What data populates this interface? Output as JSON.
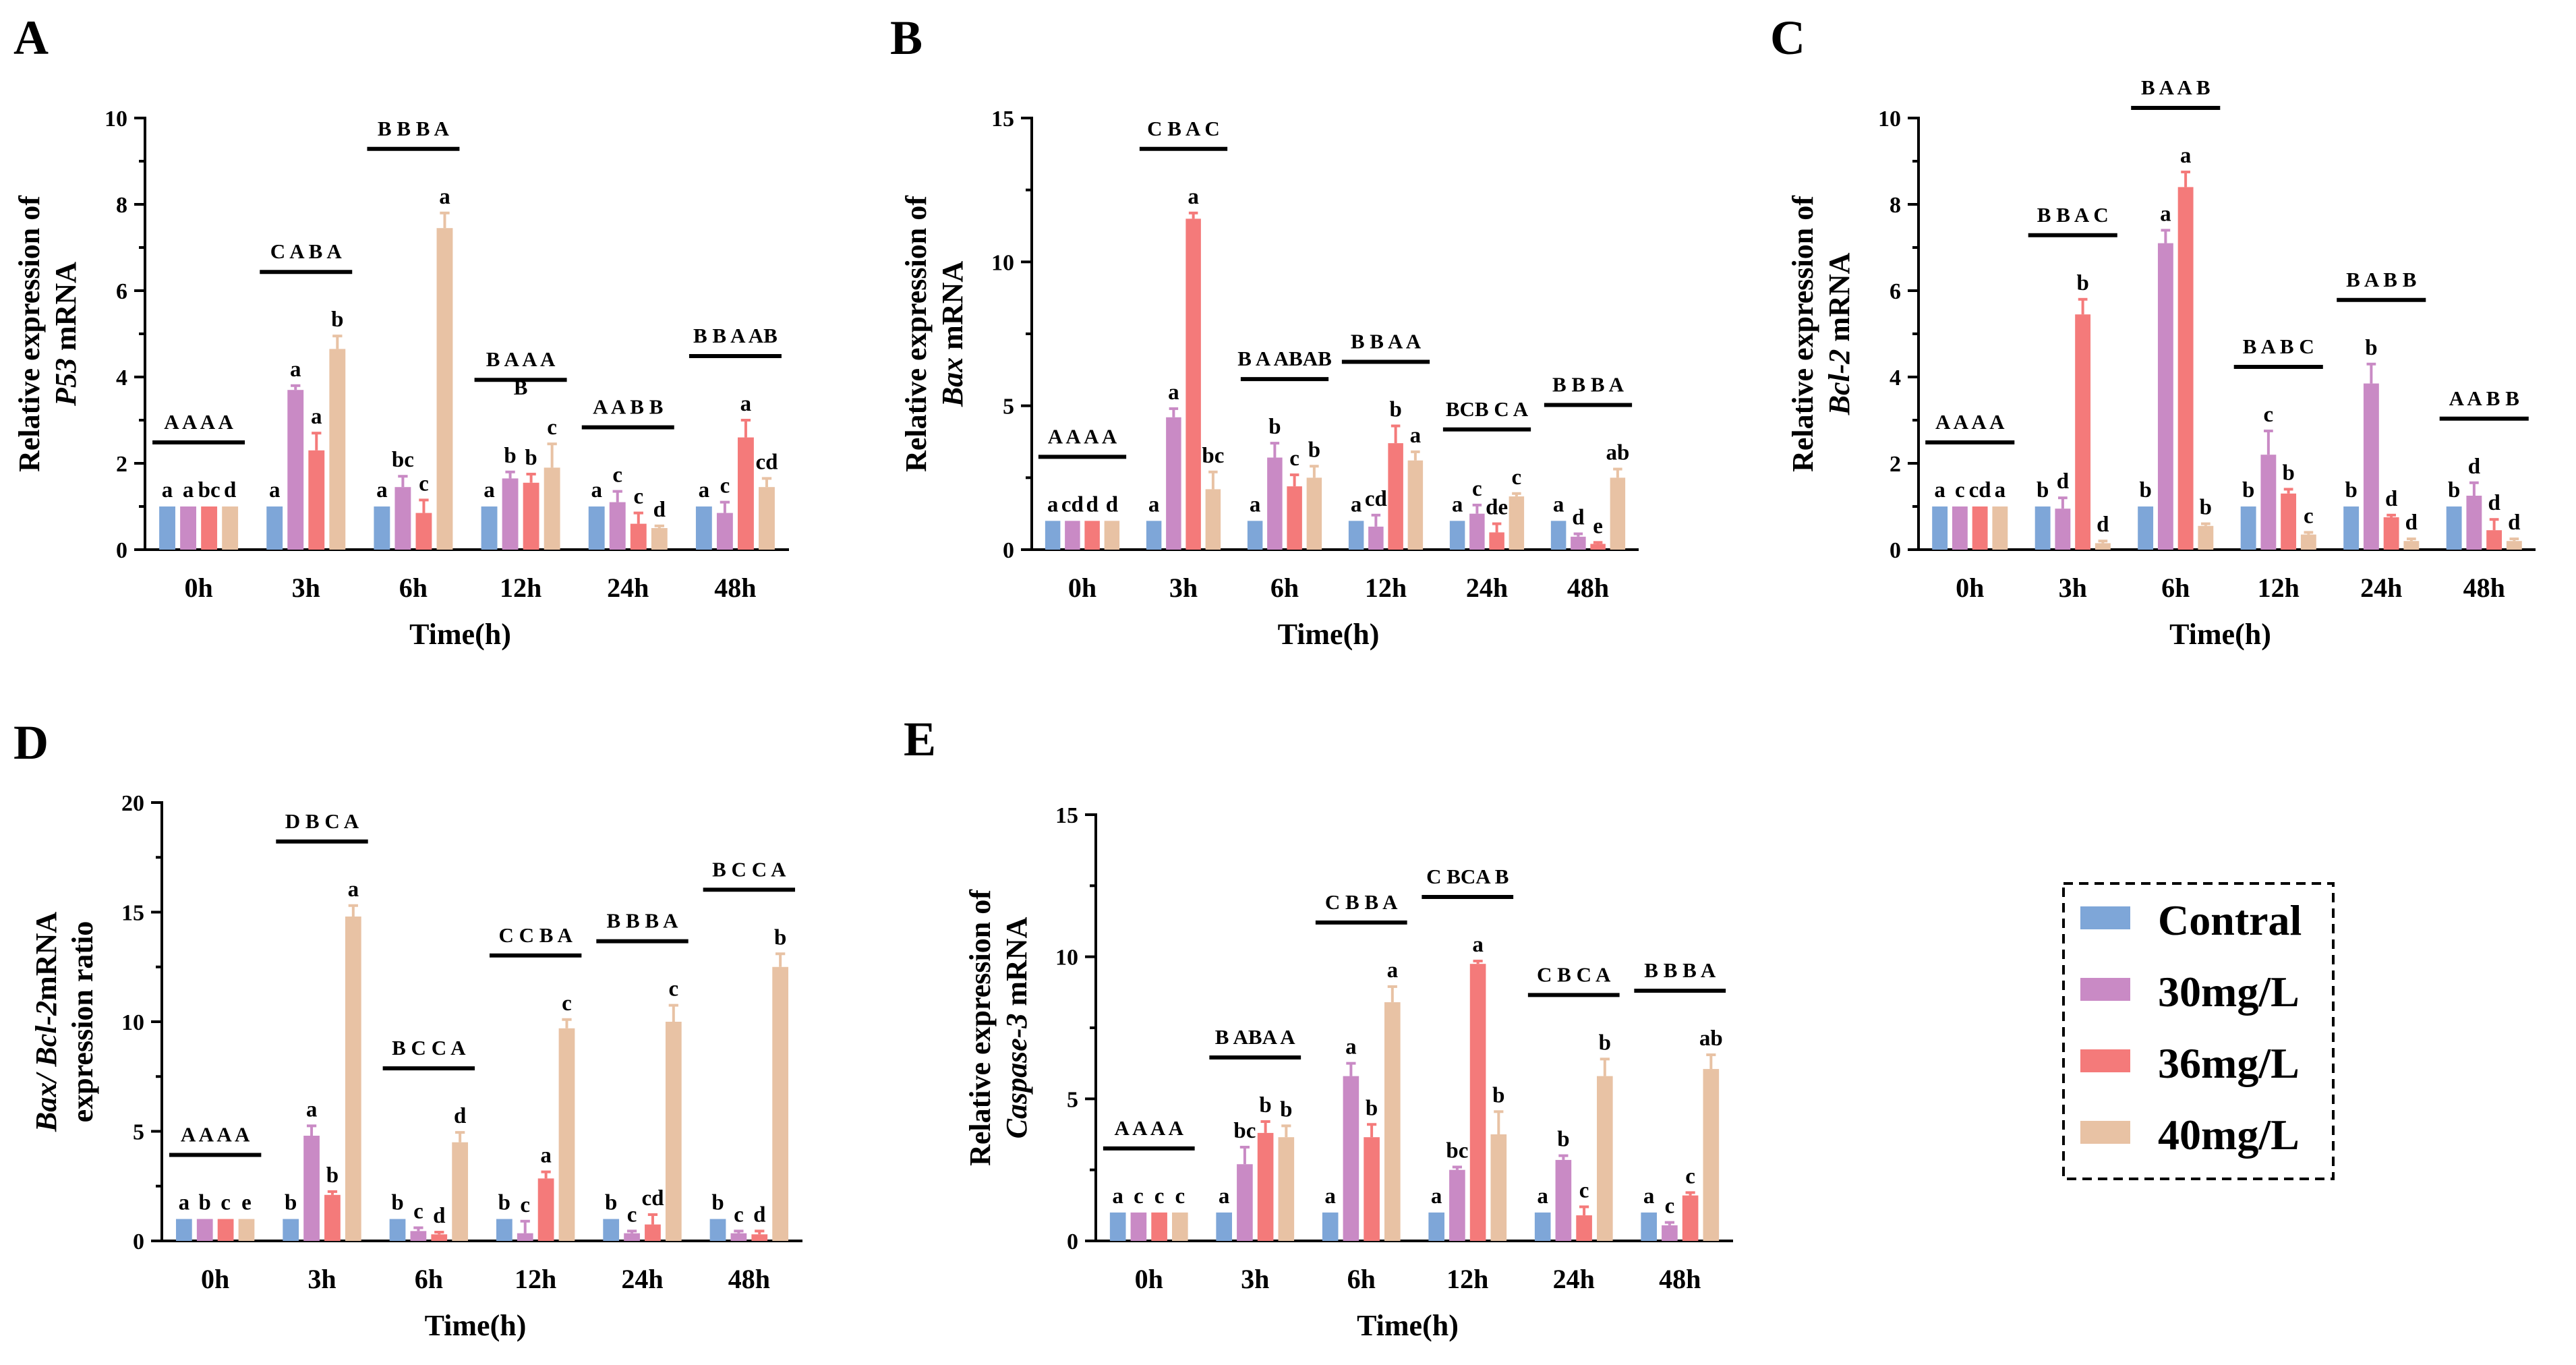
{
  "legend": {
    "items": [
      {
        "label": "Contral",
        "color": "#7ea6d8"
      },
      {
        "label": "30mg/L",
        "color": "#c98ac5"
      },
      {
        "label": "36mg/L",
        "color": "#f47a7a"
      },
      {
        "label": "40mg/L",
        "color": "#e8c2a4"
      }
    ]
  },
  "chart_data": [
    {
      "panel": "A",
      "type": "bar",
      "ylabel_prefix": "Relative expression of",
      "ylabel_gene": "P53",
      "ylabel_suffix": " mRNA",
      "xlabel": "Time(h)",
      "categories": [
        "0h",
        "3h",
        "6h",
        "12h",
        "24h",
        "48h"
      ],
      "ylim": [
        0,
        10
      ],
      "yticks": [
        0,
        2,
        4,
        6,
        8,
        10
      ],
      "series": [
        {
          "name": "Contral",
          "values": [
            1.0,
            1.0,
            1.0,
            1.0,
            1.0,
            1.0
          ],
          "errors": [
            0,
            0,
            0,
            0,
            0,
            0
          ],
          "letters": [
            "a",
            "a",
            "a",
            "a",
            "a",
            "a"
          ]
        },
        {
          "name": "30mg/L",
          "values": [
            1.0,
            3.7,
            1.45,
            1.65,
            1.1,
            0.85
          ],
          "errors": [
            0,
            0.1,
            0.25,
            0.15,
            0.25,
            0.25
          ],
          "letters": [
            "a",
            "a",
            "bc",
            "b",
            "c",
            "c"
          ]
        },
        {
          "name": "36mg/L",
          "values": [
            1.0,
            2.3,
            0.85,
            1.55,
            0.6,
            2.6
          ],
          "errors": [
            0,
            0.4,
            0.3,
            0.2,
            0.25,
            0.4
          ],
          "letters": [
            "bc",
            "a",
            "c",
            "b",
            "c",
            "a"
          ]
        },
        {
          "name": "40mg/L",
          "values": [
            1.0,
            4.65,
            7.45,
            1.9,
            0.5,
            1.45
          ],
          "errors": [
            0,
            0.3,
            0.35,
            0.55,
            0.05,
            0.2
          ],
          "letters": [
            "d",
            "b",
            "a",
            "c",
            "d",
            "cd"
          ]
        }
      ],
      "group_labels": [
        "A A A A",
        "C A B A",
        "B B B A",
        "B A A A",
        "A A B B",
        "B B A AB"
      ],
      "group_sublabels": [
        "",
        "",
        "",
        "B",
        "",
        ""
      ]
    },
    {
      "panel": "B",
      "type": "bar",
      "ylabel_prefix": "Relative expression of",
      "ylabel_gene": "Bax",
      "ylabel_suffix": " mRNA",
      "xlabel": "Time(h)",
      "categories": [
        "0h",
        "3h",
        "6h",
        "12h",
        "24h",
        "48h"
      ],
      "ylim": [
        0,
        15
      ],
      "yticks": [
        0,
        5,
        10,
        15
      ],
      "series": [
        {
          "name": "Contral",
          "values": [
            1.0,
            1.0,
            1.0,
            1.0,
            1.0,
            1.0
          ],
          "errors": [
            0,
            0,
            0,
            0,
            0,
            0
          ],
          "letters": [
            "a",
            "a",
            "a",
            "a",
            "a",
            "a"
          ]
        },
        {
          "name": "30mg/L",
          "values": [
            1.0,
            4.6,
            3.2,
            0.8,
            1.25,
            0.45
          ],
          "errors": [
            0,
            0.3,
            0.5,
            0.4,
            0.3,
            0.1
          ],
          "letters": [
            "cd",
            "a",
            "b",
            "cd",
            "c",
            "d"
          ]
        },
        {
          "name": "36mg/L",
          "values": [
            1.0,
            11.5,
            2.2,
            3.7,
            0.6,
            0.2
          ],
          "errors": [
            0,
            0.2,
            0.4,
            0.6,
            0.3,
            0.05
          ],
          "letters": [
            "d",
            "a",
            "c",
            "b",
            "de",
            "e"
          ]
        },
        {
          "name": "40mg/L",
          "values": [
            1.0,
            2.1,
            2.5,
            3.1,
            1.85,
            2.5
          ],
          "errors": [
            0,
            0.6,
            0.4,
            0.3,
            0.1,
            0.3
          ],
          "letters": [
            "d",
            "bc",
            "b",
            "a",
            "c",
            "ab"
          ]
        }
      ],
      "group_labels": [
        "A A A A",
        "C B A C",
        "B A ABAB",
        "B B A A",
        "BCB C A",
        "B B B A"
      ],
      "group_sublabels": [
        "",
        "",
        "",
        "",
        "",
        ""
      ]
    },
    {
      "panel": "C",
      "type": "bar",
      "ylabel_prefix": "Relative expression of",
      "ylabel_gene": "Bcl-2",
      "ylabel_suffix": " mRNA",
      "xlabel": "Time(h)",
      "categories": [
        "0h",
        "3h",
        "6h",
        "12h",
        "24h",
        "48h"
      ],
      "ylim": [
        0,
        10
      ],
      "yticks": [
        0,
        2,
        4,
        6,
        8,
        10
      ],
      "series": [
        {
          "name": "Contral",
          "values": [
            1.0,
            1.0,
            1.0,
            1.0,
            1.0,
            1.0
          ],
          "errors": [
            0,
            0,
            0,
            0,
            0,
            0
          ],
          "letters": [
            "a",
            "b",
            "b",
            "b",
            "b",
            "b"
          ]
        },
        {
          "name": "30mg/L",
          "values": [
            1.0,
            0.95,
            7.1,
            2.2,
            3.85,
            1.25
          ],
          "errors": [
            0,
            0.25,
            0.3,
            0.55,
            0.45,
            0.3
          ],
          "letters": [
            "c",
            "d",
            "a",
            "c",
            "b",
            "d"
          ]
        },
        {
          "name": "36mg/L",
          "values": [
            1.0,
            5.45,
            8.4,
            1.3,
            0.75,
            0.45
          ],
          "errors": [
            0,
            0.35,
            0.35,
            0.1,
            0.05,
            0.25
          ],
          "letters": [
            "cd",
            "b",
            "a",
            "b",
            "d",
            "d"
          ]
        },
        {
          "name": "40mg/L",
          "values": [
            1.0,
            0.15,
            0.55,
            0.35,
            0.2,
            0.2
          ],
          "errors": [
            0,
            0.05,
            0.05,
            0.05,
            0.05,
            0.05
          ],
          "letters": [
            "a",
            "d",
            "b",
            "c",
            "d",
            "d"
          ]
        }
      ],
      "group_labels": [
        "A A A A",
        "B B A C",
        "B A A B",
        "B A B C",
        "B A B B",
        "A A B B"
      ],
      "group_sublabels": [
        "",
        "",
        "",
        "",
        "",
        ""
      ]
    },
    {
      "panel": "D",
      "type": "bar",
      "ylabel_prefix": "expression ratio",
      "ylabel_gene": "Bax/ Bcl-2",
      "ylabel_suffix": "mRNA",
      "xlabel": "Time(h)",
      "categories": [
        "0h",
        "3h",
        "6h",
        "12h",
        "24h",
        "48h"
      ],
      "ylim": [
        0,
        20
      ],
      "yticks": [
        0,
        5,
        10,
        15,
        20
      ],
      "series": [
        {
          "name": "Contral",
          "values": [
            1.0,
            1.0,
            1.0,
            1.0,
            1.0,
            1.0
          ],
          "errors": [
            0,
            0,
            0,
            0,
            0,
            0
          ],
          "letters": [
            "a",
            "b",
            "b",
            "b",
            "b",
            "b"
          ]
        },
        {
          "name": "30mg/L",
          "values": [
            1.0,
            4.8,
            0.45,
            0.35,
            0.35,
            0.35
          ],
          "errors": [
            0,
            0.45,
            0.15,
            0.55,
            0.1,
            0.1
          ],
          "letters": [
            "b",
            "a",
            "c",
            "c",
            "c",
            "c"
          ]
        },
        {
          "name": "36mg/L",
          "values": [
            1.0,
            2.1,
            0.3,
            2.85,
            0.75,
            0.3
          ],
          "errors": [
            0,
            0.15,
            0.1,
            0.3,
            0.45,
            0.15
          ],
          "letters": [
            "c",
            "b",
            "d",
            "a",
            "cd",
            "d"
          ]
        },
        {
          "name": "40mg/L",
          "values": [
            1.0,
            14.8,
            4.5,
            9.7,
            10.0,
            12.5
          ],
          "errors": [
            0,
            0.5,
            0.45,
            0.4,
            0.75,
            0.6
          ],
          "letters": [
            "e",
            "a",
            "d",
            "c",
            "c",
            "b"
          ]
        }
      ],
      "group_labels": [
        "A A A A",
        "D B C A",
        "B C C A",
        "C C B A",
        "B B B A",
        "B C C A"
      ],
      "group_sublabels": [
        "",
        "",
        "",
        "",
        "",
        ""
      ]
    },
    {
      "panel": "E",
      "type": "bar",
      "ylabel_prefix": "Relative expression of",
      "ylabel_gene": "Caspase-3",
      "ylabel_suffix": " mRNA",
      "xlabel": "Time(h)",
      "categories": [
        "0h",
        "3h",
        "6h",
        "12h",
        "24h",
        "48h"
      ],
      "ylim": [
        0,
        15
      ],
      "yticks": [
        0,
        5,
        10,
        15
      ],
      "series": [
        {
          "name": "Contral",
          "values": [
            1.0,
            1.0,
            1.0,
            1.0,
            1.0,
            1.0
          ],
          "errors": [
            0,
            0,
            0,
            0,
            0,
            0
          ],
          "letters": [
            "a",
            "a",
            "a",
            "a",
            "a",
            "a"
          ]
        },
        {
          "name": "30mg/L",
          "values": [
            1.0,
            2.7,
            5.8,
            2.5,
            2.85,
            0.55
          ],
          "errors": [
            0,
            0.6,
            0.45,
            0.1,
            0.15,
            0.1
          ],
          "letters": [
            "c",
            "bc",
            "a",
            "bc",
            "b",
            "c"
          ]
        },
        {
          "name": "36mg/L",
          "values": [
            1.0,
            3.8,
            3.65,
            9.75,
            0.9,
            1.6
          ],
          "errors": [
            0,
            0.4,
            0.45,
            0.1,
            0.3,
            0.1
          ],
          "letters": [
            "c",
            "b",
            "b",
            "a",
            "c",
            "c"
          ]
        },
        {
          "name": "40mg/L",
          "values": [
            1.0,
            3.65,
            8.4,
            3.75,
            5.8,
            6.05
          ],
          "errors": [
            0,
            0.4,
            0.55,
            0.8,
            0.6,
            0.5
          ],
          "letters": [
            "c",
            "b",
            "a",
            "b",
            "b",
            "ab"
          ]
        }
      ],
      "group_labels": [
        "A A A A",
        "B ABA A",
        "C B B A",
        "C BCA B",
        "C B C A",
        "B B B A"
      ],
      "group_sublabels": [
        "",
        "",
        "",
        "",
        "",
        ""
      ]
    }
  ]
}
